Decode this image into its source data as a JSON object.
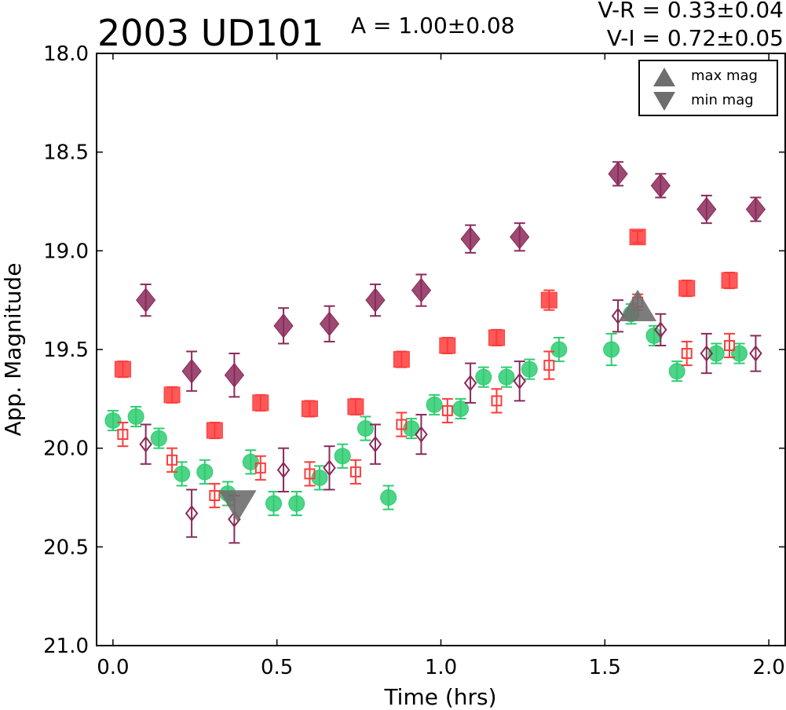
{
  "chart_data": {
    "type": "scatter",
    "title": "2003 UD101",
    "amplitude_text": "A  = 1.00±0.08",
    "color_index_vr": "V-R = 0.33±0.04",
    "color_index_vi": "V-I  = 0.72±0.05",
    "xlabel": "Time (hrs)",
    "ylabel": "App. Magnitude",
    "xlim": [
      -0.05,
      2.05
    ],
    "ylim": [
      21.0,
      18.0
    ],
    "y_inverted": true,
    "xticks": [
      0.0,
      0.5,
      1.0,
      1.5,
      2.0
    ],
    "xtick_labels": [
      "0.0",
      "0.5",
      "1.0",
      "1.5",
      "2.0"
    ],
    "yticks": [
      18.0,
      18.5,
      19.0,
      19.5,
      20.0,
      20.5,
      21.0
    ],
    "ytick_labels": [
      "18.0",
      "18.5",
      "19.0",
      "19.5",
      "20.0",
      "20.5",
      "21.0"
    ],
    "grid": false,
    "legend_position": "top-right",
    "legend": [
      {
        "label": "max mag",
        "marker": "triangle-up",
        "color": "#6e6e6e"
      },
      {
        "label": "min mag",
        "marker": "triangle-down",
        "color": "#6e6e6e"
      }
    ],
    "extrema": [
      {
        "kind": "min",
        "x": 0.38,
        "y": 20.27
      },
      {
        "kind": "max",
        "x": 1.6,
        "y": 19.3
      }
    ],
    "series": [
      {
        "marker": "circle-filled",
        "color": "#2ecc71",
        "points": [
          {
            "x": 0.0,
            "y": 19.86,
            "err": 0.05
          },
          {
            "x": 0.07,
            "y": 19.84,
            "err": 0.05
          },
          {
            "x": 0.14,
            "y": 19.95,
            "err": 0.05
          },
          {
            "x": 0.21,
            "y": 20.13,
            "err": 0.06
          },
          {
            "x": 0.28,
            "y": 20.12,
            "err": 0.06
          },
          {
            "x": 0.35,
            "y": 20.23,
            "err": 0.06
          },
          {
            "x": 0.42,
            "y": 20.07,
            "err": 0.06
          },
          {
            "x": 0.49,
            "y": 20.28,
            "err": 0.06
          },
          {
            "x": 0.56,
            "y": 20.28,
            "err": 0.06
          },
          {
            "x": 0.63,
            "y": 20.15,
            "err": 0.06
          },
          {
            "x": 0.7,
            "y": 20.04,
            "err": 0.06
          },
          {
            "x": 0.77,
            "y": 19.9,
            "err": 0.06
          },
          {
            "x": 0.84,
            "y": 20.25,
            "err": 0.06
          },
          {
            "x": 0.91,
            "y": 19.9,
            "err": 0.05
          },
          {
            "x": 0.98,
            "y": 19.78,
            "err": 0.05
          },
          {
            "x": 1.06,
            "y": 19.8,
            "err": 0.05
          },
          {
            "x": 1.13,
            "y": 19.64,
            "err": 0.05
          },
          {
            "x": 1.2,
            "y": 19.64,
            "err": 0.05
          },
          {
            "x": 1.27,
            "y": 19.6,
            "err": 0.05
          },
          {
            "x": 1.36,
            "y": 19.5,
            "err": 0.06
          },
          {
            "x": 1.52,
            "y": 19.5,
            "err": 0.08
          },
          {
            "x": 1.58,
            "y": 19.32,
            "err": 0.05
          },
          {
            "x": 1.65,
            "y": 19.43,
            "err": 0.05
          },
          {
            "x": 1.72,
            "y": 19.61,
            "err": 0.05
          },
          {
            "x": 1.84,
            "y": 19.52,
            "err": 0.05
          },
          {
            "x": 1.91,
            "y": 19.52,
            "err": 0.05
          }
        ]
      },
      {
        "marker": "square-filled",
        "color": "#ff3b3b",
        "points": [
          {
            "x": 0.03,
            "y": 19.6,
            "err": 0.04
          },
          {
            "x": 0.18,
            "y": 19.73,
            "err": 0.04
          },
          {
            "x": 0.31,
            "y": 19.91,
            "err": 0.04
          },
          {
            "x": 0.45,
            "y": 19.77,
            "err": 0.04
          },
          {
            "x": 0.6,
            "y": 19.8,
            "err": 0.04
          },
          {
            "x": 0.74,
            "y": 19.79,
            "err": 0.04
          },
          {
            "x": 0.88,
            "y": 19.55,
            "err": 0.04
          },
          {
            "x": 1.02,
            "y": 19.48,
            "err": 0.04
          },
          {
            "x": 1.17,
            "y": 19.44,
            "err": 0.04
          },
          {
            "x": 1.33,
            "y": 19.25,
            "err": 0.05
          },
          {
            "x": 1.6,
            "y": 18.93,
            "err": 0.03
          },
          {
            "x": 1.75,
            "y": 19.19,
            "err": 0.04
          },
          {
            "x": 1.88,
            "y": 19.15,
            "err": 0.04
          }
        ]
      },
      {
        "marker": "diamond-filled",
        "color": "#8b2a5a",
        "points": [
          {
            "x": 0.1,
            "y": 19.25,
            "err": 0.08
          },
          {
            "x": 0.24,
            "y": 19.61,
            "err": 0.1
          },
          {
            "x": 0.37,
            "y": 19.63,
            "err": 0.11
          },
          {
            "x": 0.52,
            "y": 19.38,
            "err": 0.09
          },
          {
            "x": 0.66,
            "y": 19.37,
            "err": 0.09
          },
          {
            "x": 0.8,
            "y": 19.25,
            "err": 0.08
          },
          {
            "x": 0.94,
            "y": 19.2,
            "err": 0.08
          },
          {
            "x": 1.09,
            "y": 18.94,
            "err": 0.07
          },
          {
            "x": 1.24,
            "y": 18.93,
            "err": 0.07
          },
          {
            "x": 1.54,
            "y": 18.61,
            "err": 0.06
          },
          {
            "x": 1.67,
            "y": 18.67,
            "err": 0.06
          },
          {
            "x": 1.81,
            "y": 18.79,
            "err": 0.07
          },
          {
            "x": 1.96,
            "y": 18.79,
            "err": 0.06
          }
        ]
      },
      {
        "marker": "square-open",
        "color": "#ff3b3b",
        "points": [
          {
            "x": 0.03,
            "y": 19.93,
            "err": 0.06
          },
          {
            "x": 0.18,
            "y": 20.06,
            "err": 0.06
          },
          {
            "x": 0.31,
            "y": 20.24,
            "err": 0.06
          },
          {
            "x": 0.45,
            "y": 20.1,
            "err": 0.06
          },
          {
            "x": 0.6,
            "y": 20.13,
            "err": 0.06
          },
          {
            "x": 0.74,
            "y": 20.12,
            "err": 0.06
          },
          {
            "x": 0.88,
            "y": 19.88,
            "err": 0.06
          },
          {
            "x": 1.02,
            "y": 19.81,
            "err": 0.06
          },
          {
            "x": 1.17,
            "y": 19.76,
            "err": 0.06
          },
          {
            "x": 1.33,
            "y": 19.58,
            "err": 0.07
          },
          {
            "x": 1.6,
            "y": 19.26,
            "err": 0.04
          },
          {
            "x": 1.75,
            "y": 19.52,
            "err": 0.06
          },
          {
            "x": 1.88,
            "y": 19.48,
            "err": 0.06
          }
        ]
      },
      {
        "marker": "diamond-open",
        "color": "#8b2a5a",
        "points": [
          {
            "x": 0.1,
            "y": 19.98,
            "err": 0.1
          },
          {
            "x": 0.24,
            "y": 20.33,
            "err": 0.12
          },
          {
            "x": 0.37,
            "y": 20.36,
            "err": 0.12
          },
          {
            "x": 0.52,
            "y": 20.11,
            "err": 0.11
          },
          {
            "x": 0.66,
            "y": 20.1,
            "err": 0.11
          },
          {
            "x": 0.8,
            "y": 19.98,
            "err": 0.1
          },
          {
            "x": 0.94,
            "y": 19.93,
            "err": 0.1
          },
          {
            "x": 1.09,
            "y": 19.67,
            "err": 0.1
          },
          {
            "x": 1.24,
            "y": 19.66,
            "err": 0.1
          },
          {
            "x": 1.54,
            "y": 19.33,
            "err": 0.08
          },
          {
            "x": 1.67,
            "y": 19.4,
            "err": 0.08
          },
          {
            "x": 1.81,
            "y": 19.52,
            "err": 0.1
          },
          {
            "x": 1.96,
            "y": 19.52,
            "err": 0.09
          }
        ]
      }
    ]
  }
}
